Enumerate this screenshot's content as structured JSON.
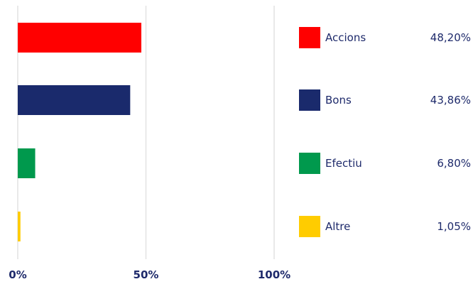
{
  "chart_data": {
    "type": "bar",
    "orientation": "horizontal",
    "categories": [
      "Accions",
      "Bons",
      "Efectiu",
      "Altre"
    ],
    "values": [
      48.2,
      43.86,
      6.8,
      1.05
    ],
    "value_labels": [
      "48,20%",
      "43,86%",
      "6,80%",
      "1,05%"
    ],
    "colors": [
      "#ff0000",
      "#1a2a6c",
      "#00994d",
      "#ffcc00"
    ],
    "xlim": [
      0,
      100
    ],
    "xticks": [
      0,
      50,
      100
    ],
    "xtick_labels": [
      "0%",
      "50%",
      "100%"
    ],
    "grid": true,
    "legend_position": "right"
  }
}
